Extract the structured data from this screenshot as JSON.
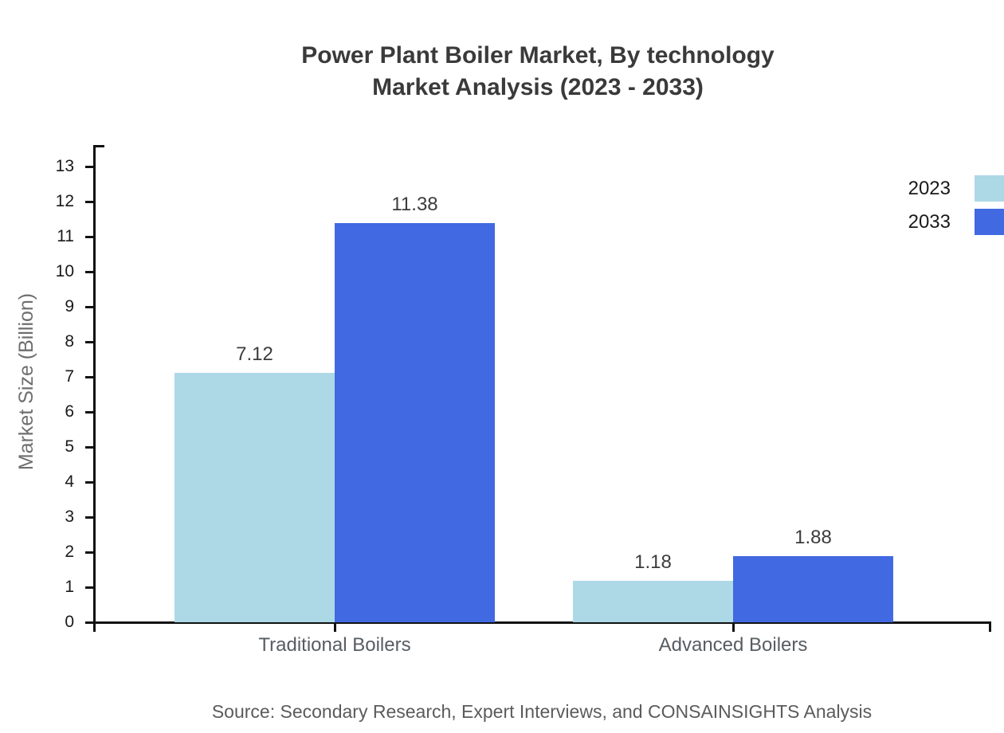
{
  "page": {
    "background": "#ffffff"
  },
  "title": {
    "line1": "Power Plant Boiler Market, By technology",
    "line2": "Market Analysis (2023 - 2033)"
  },
  "source": "Source: Secondary Research, Expert Interviews, and CONSAINSIGHTS Analysis",
  "chart_data": {
    "type": "bar",
    "title": "Power Plant Boiler Market, By technology Market Analysis (2023 - 2033)",
    "categories": [
      "Traditional Boilers",
      "Advanced Boilers"
    ],
    "series": [
      {
        "name": "2023",
        "color": "#ADD8E6",
        "values": [
          7.12,
          1.18
        ]
      },
      {
        "name": "2033",
        "color": "#4169E1",
        "values": [
          11.38,
          1.88
        ]
      }
    ],
    "xlabel": "",
    "ylabel": "Market Size (Billion)",
    "ylim": [
      0,
      13
    ],
    "ytick_step": 1,
    "value_labels": true,
    "grid": false,
    "legend_position": "top-right",
    "axis_color": "#111111",
    "value_label_color": "#3c3c3c",
    "tick_label_color": "#1a1a1a",
    "category_label_color": "#565d62"
  }
}
